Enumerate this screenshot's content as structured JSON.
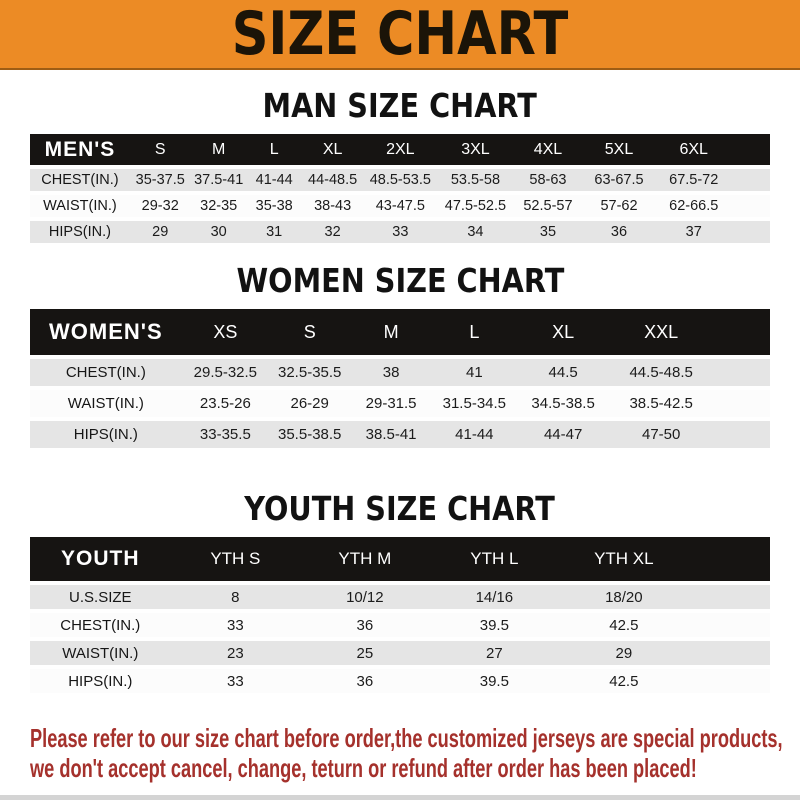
{
  "banner": {
    "title": "SIZE CHART"
  },
  "sections": [
    {
      "title": "MAN SIZE CHART",
      "table": {
        "header": [
          "MEN'S",
          "S",
          "M",
          "L",
          "XL",
          "2XL",
          "3XL",
          "4XL",
          "5XL",
          "6XL"
        ],
        "rows": [
          [
            "CHEST(IN.)",
            "35-37.5",
            "37.5-41",
            "41-44",
            "44-48.5",
            "48.5-53.5",
            "53.5-58",
            "58-63",
            "63-67.5",
            "67.5-72"
          ],
          [
            "WAIST(IN.)",
            "29-32",
            "32-35",
            "35-38",
            "38-43",
            "43-47.5",
            "47.5-52.5",
            "52.5-57",
            "57-62",
            "62-66.5"
          ],
          [
            "HIPS(IN.)",
            "29",
            "30",
            "31",
            "32",
            "33",
            "34",
            "35",
            "36",
            "37"
          ]
        ]
      }
    },
    {
      "title": "WOMEN SIZE CHART",
      "table": {
        "header": [
          "WOMEN'S",
          "XS",
          "S",
          "M",
          "L",
          "XL",
          "XXL"
        ],
        "rows": [
          [
            "CHEST(IN.)",
            "29.5-32.5",
            "32.5-35.5",
            "38",
            "41",
            "44.5",
            "44.5-48.5"
          ],
          [
            "WAIST(IN.)",
            "23.5-26",
            "26-29",
            "29-31.5",
            "31.5-34.5",
            "34.5-38.5",
            "38.5-42.5"
          ],
          [
            "HIPS(IN.)",
            "33-35.5",
            "35.5-38.5",
            "38.5-41",
            "41-44",
            "44-47",
            "47-50"
          ]
        ]
      }
    },
    {
      "title": "YOUTH SIZE CHART",
      "table": {
        "header": [
          "YOUTH",
          "YTH S",
          "YTH M",
          "YTH L",
          "YTH XL"
        ],
        "rows": [
          [
            "U.S.SIZE",
            "8",
            "10/12",
            "14/16",
            "18/20"
          ],
          [
            "CHEST(IN.)",
            "33",
            "36",
            "39.5",
            "42.5"
          ],
          [
            "WAIST(IN.)",
            "23",
            "25",
            "27",
            "29"
          ],
          [
            "HIPS(IN.)",
            "33",
            "36",
            "39.5",
            "42.5"
          ]
        ]
      }
    }
  ],
  "footer": {
    "line1": "Please refer to our size chart before order,the customized jerseys are special products,",
    "line2": "we don't accept cancel, change, teturn or refund after order has been placed!"
  },
  "colors": {
    "banner_bg": "#EC8B25",
    "table_header_bar": "#161412",
    "row_shaded": "#E5E5E5",
    "note_red": "#A5312C"
  }
}
